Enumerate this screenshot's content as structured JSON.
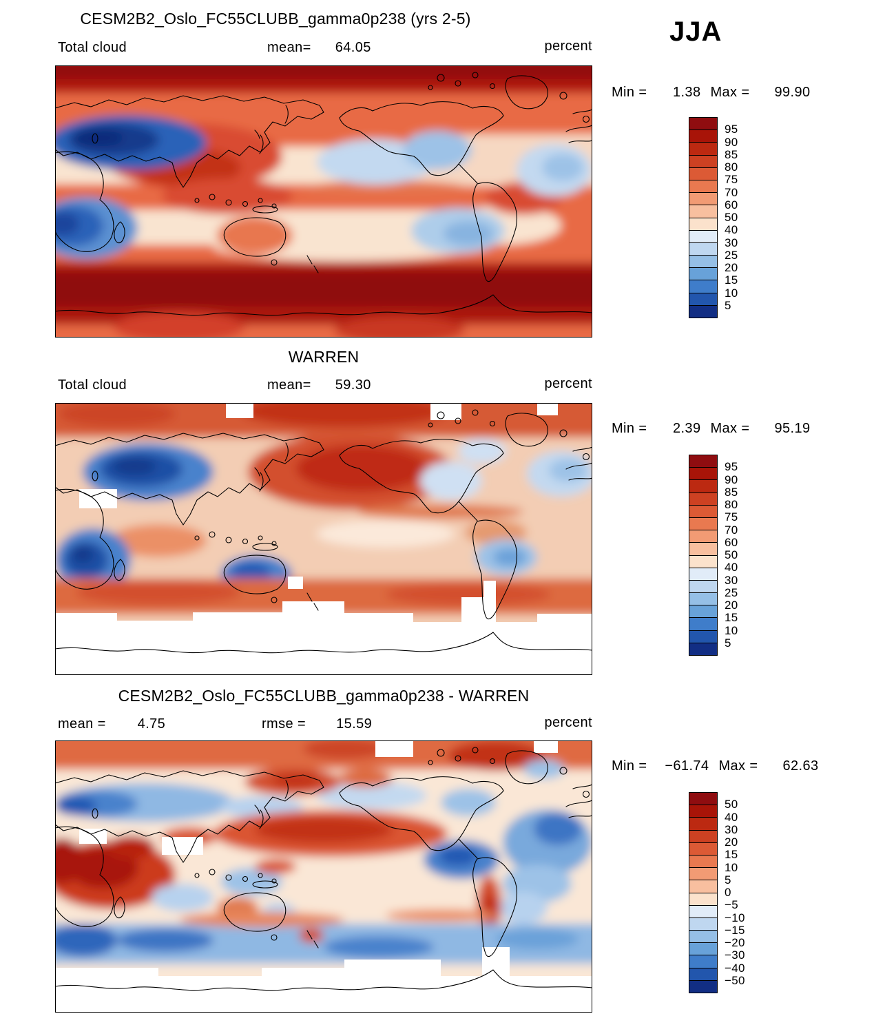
{
  "header": {
    "season": "JJA"
  },
  "panels": [
    {
      "title": "CESM2B2_Oslo_FC55CLUBB_gamma0p238 (yrs 2-5)",
      "row": {
        "left_label": "Total cloud",
        "mean_label": "mean=",
        "mean_value": "64.05",
        "units": "percent"
      },
      "minmax": {
        "min_label": "Min =",
        "min_value": "1.38",
        "max_label": "Max =",
        "max_value": "99.90"
      },
      "colorbar": {
        "colors": [
          "#8f0d10",
          "#a81408",
          "#bc2911",
          "#cd4122",
          "#dc5a35",
          "#e97950",
          "#f29b74",
          "#f8bf9f",
          "#fbe2cc",
          "#e1ecf8",
          "#bfd7f0",
          "#95bfe6",
          "#68a2d9",
          "#3f7dca",
          "#2256ad",
          "#122e84"
        ],
        "ticks": [
          "95",
          "90",
          "85",
          "80",
          "75",
          "70",
          "60",
          "50",
          "40",
          "30",
          "25",
          "20",
          "15",
          "10",
          "5"
        ]
      }
    },
    {
      "title": "WARREN",
      "row": {
        "left_label": "Total cloud",
        "mean_label": "mean=",
        "mean_value": "59.30",
        "units": "percent"
      },
      "minmax": {
        "min_label": "Min =",
        "min_value": "2.39",
        "max_label": "Max =",
        "max_value": "95.19"
      },
      "colorbar": {
        "colors": [
          "#8f0d10",
          "#a81408",
          "#bc2911",
          "#cd4122",
          "#dc5a35",
          "#e97950",
          "#f29b74",
          "#f8bf9f",
          "#fbe2cc",
          "#e1ecf8",
          "#bfd7f0",
          "#95bfe6",
          "#68a2d9",
          "#3f7dca",
          "#2256ad",
          "#122e84"
        ],
        "ticks": [
          "95",
          "90",
          "85",
          "80",
          "75",
          "70",
          "60",
          "50",
          "40",
          "30",
          "25",
          "20",
          "15",
          "10",
          "5"
        ]
      }
    },
    {
      "title": "CESM2B2_Oslo_FC55CLUBB_gamma0p238 - WARREN",
      "row": {
        "mean_label": "mean =",
        "mean_value": "4.75",
        "rmse_label": "rmse =",
        "rmse_value": "15.59",
        "units": "percent"
      },
      "minmax": {
        "min_label": "Min =",
        "min_value": "−61.74",
        "max_label": "Max =",
        "max_value": "62.63"
      },
      "colorbar": {
        "colors": [
          "#8f0d10",
          "#a81408",
          "#bc2911",
          "#cd4122",
          "#dc5a35",
          "#e97950",
          "#f29b74",
          "#f8bf9f",
          "#fbe2cc",
          "#e1ecf8",
          "#bfd7f0",
          "#95bfe6",
          "#68a2d9",
          "#3f7dca",
          "#2256ad",
          "#122e84"
        ],
        "ticks": [
          "50",
          "40",
          "30",
          "20",
          "15",
          "10",
          "5",
          "0",
          "−5",
          "−10",
          "−15",
          "−20",
          "−30",
          "−40",
          "−50"
        ]
      }
    }
  ],
  "chart_data": [
    {
      "type": "heatmap",
      "subtype": "global-filled-contour-map",
      "title": "CESM2B2_Oslo_FC55CLUBB_gamma0p238 (yrs 2-5)",
      "variable": "Total cloud",
      "season": "JJA",
      "units": "percent",
      "stats": {
        "mean": 64.05,
        "min": 1.38,
        "max": 99.9
      },
      "contour_levels": [
        5,
        10,
        15,
        20,
        25,
        30,
        40,
        50,
        60,
        70,
        75,
        80,
        85,
        90,
        95
      ],
      "palette": "blue-to-red",
      "legend_position": "right"
    },
    {
      "type": "heatmap",
      "subtype": "global-filled-contour-map",
      "title": "WARREN",
      "variable": "Total cloud",
      "season": "JJA",
      "units": "percent",
      "stats": {
        "mean": 59.3,
        "min": 2.39,
        "max": 95.19
      },
      "contour_levels": [
        5,
        10,
        15,
        20,
        25,
        30,
        40,
        50,
        60,
        70,
        75,
        80,
        85,
        90,
        95
      ],
      "palette": "blue-to-red",
      "legend_position": "right",
      "notes": "missing data shown white (high southern latitudes and scattered boxes)"
    },
    {
      "type": "heatmap",
      "subtype": "global-filled-contour-difference-map",
      "title": "CESM2B2_Oslo_FC55CLUBB_gamma0p238 - WARREN",
      "season": "JJA",
      "units": "percent",
      "stats": {
        "mean": 4.75,
        "rmse": 15.59,
        "min": -61.74,
        "max": 62.63
      },
      "contour_levels": [
        -50,
        -40,
        -30,
        -20,
        -15,
        -10,
        -5,
        0,
        5,
        10,
        15,
        20,
        30,
        40,
        50
      ],
      "palette": "blue-to-red",
      "legend_position": "right",
      "notes": "missing data shown white (high southern latitudes and scattered boxes)"
    }
  ]
}
